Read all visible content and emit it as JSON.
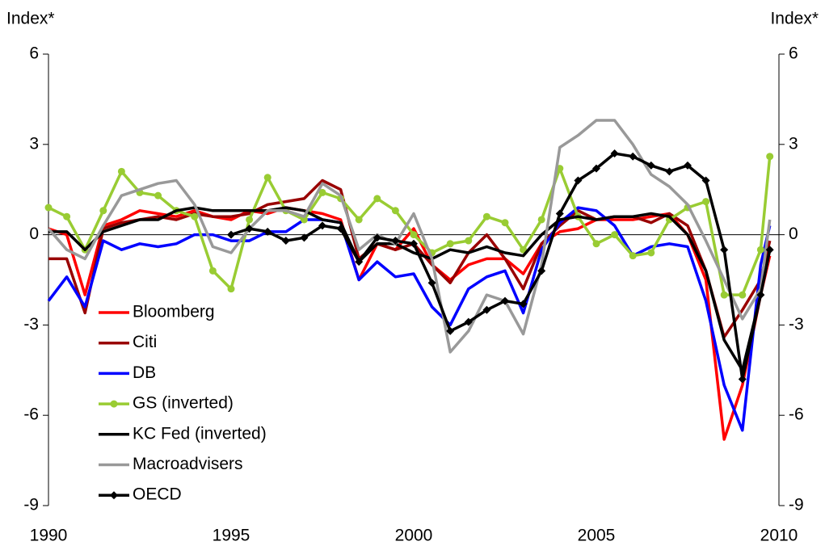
{
  "chart_data": {
    "type": "line",
    "y_label": "Index*",
    "y2_label": "Index*",
    "x": [
      1990,
      1990.5,
      1991,
      1991.5,
      1992,
      1992.5,
      1993,
      1993.5,
      1994,
      1994.5,
      1995,
      1995.5,
      1996,
      1996.5,
      1997,
      1997.5,
      1998,
      1998.5,
      1999,
      1999.5,
      2000,
      2000.5,
      2001,
      2001.5,
      2002,
      2002.5,
      2003,
      2003.5,
      2004,
      2004.5,
      2005,
      2005.5,
      2006,
      2006.5,
      2007,
      2007.5,
      2008,
      2008.5,
      2009,
      2009.5,
      2009.75
    ],
    "xlim": [
      1990,
      2010
    ],
    "xticks": [
      1990,
      1995,
      2000,
      2005,
      2010
    ],
    "ylim": [
      -9,
      6
    ],
    "yticks": [
      -9,
      -6,
      -3,
      0,
      3,
      6
    ],
    "y2lim": [
      -9,
      6
    ],
    "y2ticks": [
      -9,
      -6,
      -3,
      0,
      3,
      6
    ],
    "series": [
      {
        "name": "Bloomberg",
        "color": "#ff0000",
        "marker": "none",
        "values": [
          0.2,
          0.0,
          -2.0,
          0.3,
          0.5,
          0.8,
          0.7,
          0.6,
          0.8,
          0.6,
          0.5,
          0.8,
          0.7,
          0.9,
          0.8,
          0.7,
          0.5,
          -1.5,
          -0.3,
          -0.5,
          0.2,
          -1.0,
          -1.5,
          -1.0,
          -0.8,
          -0.8,
          -1.3,
          -0.3,
          0.1,
          0.2,
          0.5,
          0.5,
          0.5,
          0.6,
          0.7,
          0.0,
          -1.5,
          -6.8,
          -5.0,
          -2.0,
          -0.7
        ]
      },
      {
        "name": "Citi",
        "color": "#990000",
        "marker": "none",
        "values": [
          -0.8,
          -0.8,
          -2.6,
          0.2,
          0.4,
          0.5,
          0.6,
          0.5,
          0.7,
          0.6,
          0.6,
          0.7,
          1.0,
          1.1,
          1.2,
          1.8,
          1.5,
          -0.8,
          -0.3,
          -0.5,
          -0.3,
          -1.0,
          -1.6,
          -0.6,
          0.0,
          -0.8,
          -1.8,
          -0.3,
          0.3,
          0.8,
          0.5,
          0.6,
          0.6,
          0.4,
          0.7,
          0.3,
          -1.2,
          -3.4,
          -2.5,
          -1.5,
          -0.2
        ]
      },
      {
        "name": "DB",
        "color": "#0000ff",
        "marker": "none",
        "values": [
          -2.2,
          -1.4,
          -2.4,
          -0.2,
          -0.5,
          -0.3,
          -0.4,
          -0.3,
          0.0,
          0.0,
          -0.2,
          -0.2,
          0.1,
          0.1,
          0.5,
          0.5,
          0.4,
          -1.5,
          -0.9,
          -1.4,
          -1.3,
          -2.4,
          -3.0,
          -1.8,
          -1.4,
          -1.2,
          -2.6,
          -0.5,
          0.4,
          0.9,
          0.8,
          0.3,
          -0.7,
          -0.4,
          -0.3,
          -0.4,
          -2.2,
          -5.0,
          -6.5,
          -1.0,
          0.3
        ]
      },
      {
        "name": "GS (inverted)",
        "color": "#99cc33",
        "marker": "circle",
        "values": [
          0.9,
          0.6,
          -0.5,
          0.8,
          2.1,
          1.4,
          1.3,
          0.8,
          0.6,
          -1.2,
          -1.8,
          0.5,
          1.9,
          0.8,
          0.5,
          1.4,
          1.2,
          0.5,
          1.2,
          0.8,
          0.0,
          -0.6,
          -0.3,
          -0.2,
          0.6,
          0.4,
          -0.5,
          0.5,
          2.2,
          0.6,
          -0.3,
          0.0,
          -0.7,
          -0.6,
          0.5,
          0.9,
          1.1,
          -2.0,
          -2.0,
          -0.5,
          2.6
        ]
      },
      {
        "name": "KC Fed (inverted)",
        "color": "#000000",
        "marker": "none",
        "values": [
          0.1,
          0.1,
          -0.5,
          0.1,
          0.3,
          0.5,
          0.5,
          0.8,
          0.9,
          0.8,
          0.8,
          0.8,
          0.8,
          0.9,
          0.8,
          0.5,
          0.4,
          -0.9,
          -0.3,
          -0.3,
          -0.6,
          -0.8,
          -0.5,
          -0.6,
          -0.4,
          -0.6,
          -0.7,
          0.0,
          0.5,
          0.6,
          0.5,
          0.6,
          0.6,
          0.7,
          0.6,
          0.0,
          -1.2,
          -3.5,
          -4.5,
          -2.0,
          -0.5
        ]
      },
      {
        "name": "Macroadvisers",
        "color": "#999999",
        "marker": "none",
        "values": [
          0.2,
          -0.5,
          -0.8,
          0.3,
          1.3,
          1.5,
          1.7,
          1.8,
          1.0,
          -0.4,
          -0.6,
          0.2,
          0.8,
          0.8,
          0.6,
          1.7,
          1.3,
          -0.5,
          0.0,
          -0.3,
          0.7,
          -0.8,
          -3.9,
          -3.2,
          -2.0,
          -2.2,
          -3.3,
          -1.0,
          2.9,
          3.3,
          3.8,
          3.8,
          3.0,
          2.0,
          1.6,
          1.0,
          -0.2,
          -1.5,
          -2.8,
          -1.8,
          0.5
        ]
      },
      {
        "name": "OECD",
        "color": "#000000",
        "marker": "diamond",
        "values": [
          null,
          null,
          null,
          null,
          null,
          null,
          null,
          null,
          null,
          null,
          0.0,
          0.2,
          0.1,
          -0.2,
          -0.1,
          0.3,
          0.2,
          -0.9,
          -0.1,
          -0.2,
          -0.3,
          -1.6,
          -3.2,
          -2.9,
          -2.5,
          -2.2,
          -2.3,
          -1.2,
          0.7,
          1.8,
          2.2,
          2.7,
          2.6,
          2.3,
          2.1,
          2.3,
          1.8,
          -0.5,
          -4.8,
          -2.0,
          -0.5
        ]
      }
    ]
  }
}
